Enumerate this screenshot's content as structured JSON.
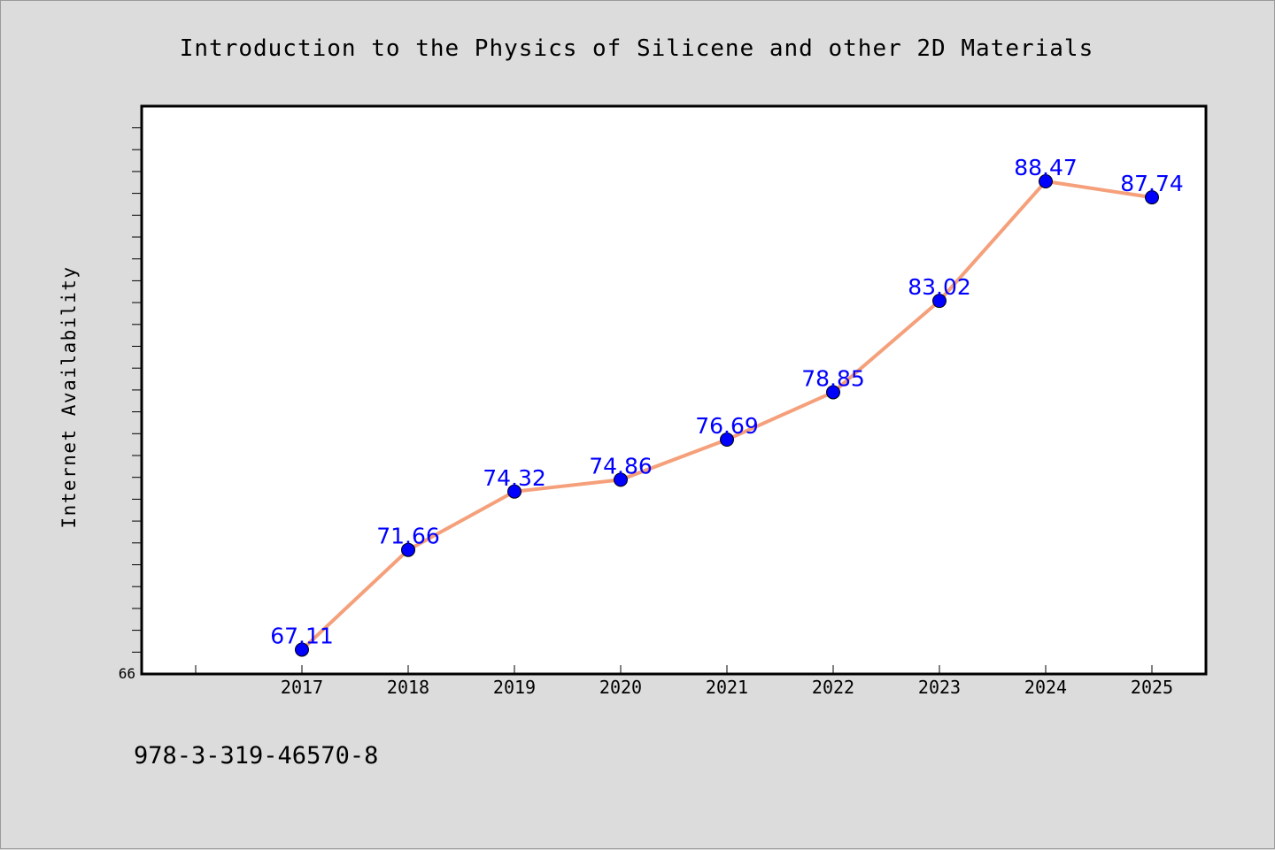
{
  "page": {
    "isbn": "978-3-319-46570-8"
  },
  "chart_data": {
    "type": "line",
    "title": "Introduction to the Physics of Silicene and other 2D Materials",
    "xlabel": "",
    "ylabel": "Internet Availability",
    "categories": [
      "2017",
      "2018",
      "2019",
      "2020",
      "2021",
      "2022",
      "2023",
      "2024",
      "2025"
    ],
    "series": [
      {
        "values": [
          67.11,
          71.66,
          74.32,
          74.86,
          76.69,
          78.85,
          83.02,
          88.47,
          87.74
        ],
        "labels": [
          "67.11",
          "71.66",
          "74.32",
          "74.86",
          "76.69",
          "78.85",
          "83.02",
          "88.47",
          "87.74"
        ],
        "line_color": "#f5a07a",
        "marker_color": "#0000ff"
      }
    ],
    "y_tick_labels": [
      "66"
    ],
    "ylim": [
      66,
      91.9
    ],
    "grid": false,
    "legend": "none",
    "colors": {
      "background": "#dcdcdc",
      "plot_background": "#ffffff",
      "data_label": "#0000ff"
    }
  }
}
